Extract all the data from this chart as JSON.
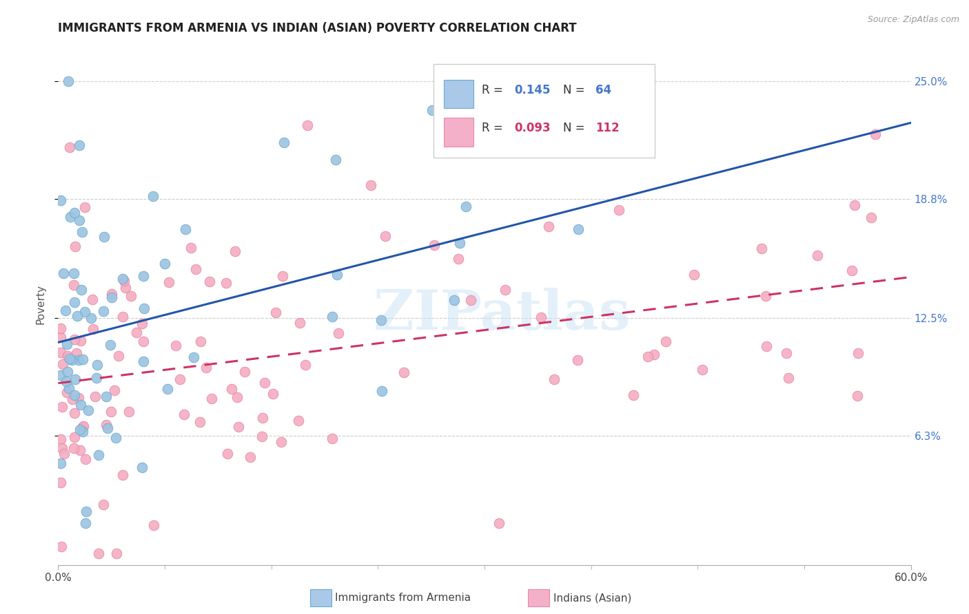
{
  "title": "IMMIGRANTS FROM ARMENIA VS INDIAN (ASIAN) POVERTY CORRELATION CHART",
  "source": "Source: ZipAtlas.com",
  "ylabel": "Poverty",
  "ytick_labels": [
    "6.3%",
    "12.5%",
    "18.8%",
    "25.0%"
  ],
  "ytick_values": [
    0.063,
    0.125,
    0.188,
    0.25
  ],
  "xlim": [
    0.0,
    0.6
  ],
  "ylim": [
    -0.005,
    0.27
  ],
  "watermark_text": "ZIPatlas",
  "blue_scatter_color": "#9dc4e0",
  "blue_scatter_edge": "#6aaad4",
  "pink_scatter_color": "#f4adc0",
  "pink_scatter_edge": "#e888a8",
  "blue_line_color": "#2255aa",
  "pink_line_color": "#cc3366",
  "right_tick_color": "#4477cc",
  "legend_r1": "0.145",
  "legend_n1": "64",
  "legend_r2": "0.093",
  "legend_n2": "112",
  "legend_patch_blue": "#aac8e8",
  "legend_patch_pink": "#f4b0c8",
  "bottom_label1": "Immigrants from Armenia",
  "bottom_label2": "Indians (Asian)"
}
